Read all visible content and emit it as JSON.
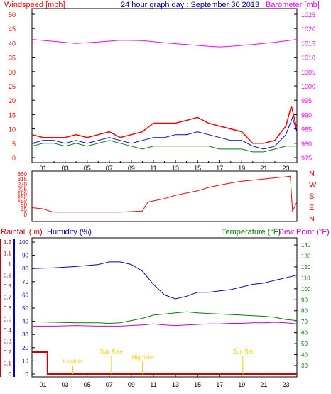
{
  "title": "24 hour graph day : September 30 2013",
  "colors": {
    "wind": "#ff0000",
    "gust": "#008000",
    "avg": "#0000ff",
    "baro": "#ff00ff",
    "rain": "#cc0000",
    "humidity": "#0000cc",
    "temp": "#008000",
    "dew": "#cc00cc",
    "sun": "#ffcc00",
    "axis": "#000000"
  },
  "panel1": {
    "left_label": "Windspeed [mph]",
    "right_label": "Barometer [mb]",
    "left_ticks": [
      "0",
      "5",
      "10",
      "15",
      "20",
      "25",
      "30",
      "35",
      "40",
      "45",
      "50"
    ],
    "right_ticks": [
      "975",
      "980",
      "985",
      "990",
      "995",
      "1000",
      "1005",
      "1010",
      "1015",
      "1020",
      "1025"
    ],
    "x_ticks": [
      "01",
      "03",
      "05",
      "07",
      "09",
      "11",
      "13",
      "15",
      "17",
      "19",
      "21",
      "23"
    ]
  },
  "panel2": {
    "left_ticks": [
      "0",
      "45",
      "90",
      "135",
      "180",
      "225",
      "270",
      "315",
      "360"
    ],
    "right_labels": [
      "N",
      "W",
      "S",
      "E",
      "N"
    ]
  },
  "panel3": {
    "rain_label": "Rainfall (.in)",
    "humidity_label": "Humidity (%)",
    "temp_label": "Temperature (°F)",
    "dew_label": "Dew Point (°F)",
    "rain_ticks": [
      "0",
      "0.1",
      "0.2",
      "0.3",
      "0.4",
      "0.5",
      "0.6",
      "0.7",
      "0.8",
      "0.9",
      "1",
      "1.1",
      "1.2"
    ],
    "humidity_ticks": [
      "0",
      "10",
      "20",
      "30",
      "40",
      "50",
      "60",
      "70",
      "80",
      "90",
      "100"
    ],
    "temp_ticks": [
      "30",
      "40",
      "50",
      "60",
      "70",
      "80",
      "90",
      "100",
      "110",
      "120",
      "130",
      "140"
    ],
    "x_ticks": [
      "01",
      "03",
      "05",
      "07",
      "09",
      "11",
      "13",
      "15",
      "17",
      "19",
      "21",
      "23"
    ],
    "events": [
      {
        "label": "Lowtide",
        "hour": 3.7
      },
      {
        "label": "Sun Rise",
        "hour": 7.2
      },
      {
        "label": "Hightide",
        "hour": 10.0
      },
      {
        "label": "Sun Set",
        "hour": 19.1
      }
    ]
  },
  "chart_data": [
    {
      "type": "line",
      "panel": "wind-barometer",
      "x_unit": "hour",
      "xlim": [
        0,
        24
      ],
      "ylim_left": [
        0,
        50
      ],
      "ylim_right": [
        975,
        1025
      ],
      "series": [
        {
          "axis": "left",
          "points": [
            [
              0,
              8
            ],
            [
              1,
              7
            ],
            [
              2,
              7
            ],
            [
              3,
              7
            ],
            [
              4,
              8
            ],
            [
              5,
              7
            ],
            [
              6,
              8
            ],
            [
              7,
              9
            ],
            [
              8,
              7
            ],
            [
              9,
              8
            ],
            [
              10,
              9
            ],
            [
              11,
              12
            ],
            [
              12,
              12
            ],
            [
              13,
              12
            ],
            [
              14,
              13
            ],
            [
              15,
              14
            ],
            [
              16,
              12
            ],
            [
              17,
              11
            ],
            [
              18,
              10
            ],
            [
              19,
              9
            ],
            [
              20,
              5
            ],
            [
              21,
              5
            ],
            [
              22,
              6
            ],
            [
              23,
              11
            ],
            [
              23.5,
              18
            ],
            [
              24,
              10
            ]
          ]
        },
        {
          "axis": "left",
          "points": [
            [
              0,
              4
            ],
            [
              1,
              5
            ],
            [
              2,
              5
            ],
            [
              3,
              4
            ],
            [
              4,
              5
            ],
            [
              5,
              4
            ],
            [
              6,
              5
            ],
            [
              7,
              6
            ],
            [
              8,
              5
            ],
            [
              9,
              4
            ],
            [
              10,
              3
            ],
            [
              11,
              4
            ],
            [
              12,
              4
            ],
            [
              13,
              4
            ],
            [
              14,
              4
            ],
            [
              15,
              4
            ],
            [
              16,
              4
            ],
            [
              17,
              3
            ],
            [
              18,
              3
            ],
            [
              19,
              3
            ],
            [
              20,
              2
            ],
            [
              21,
              2
            ],
            [
              22,
              3
            ],
            [
              23,
              4
            ],
            [
              24,
              4
            ]
          ]
        },
        {
          "axis": "left",
          "points": [
            [
              0,
              5
            ],
            [
              1,
              6
            ],
            [
              2,
              6
            ],
            [
              3,
              5
            ],
            [
              4,
              6
            ],
            [
              5,
              5
            ],
            [
              6,
              6
            ],
            [
              7,
              7
            ],
            [
              8,
              6
            ],
            [
              9,
              5
            ],
            [
              10,
              6
            ],
            [
              11,
              7
            ],
            [
              12,
              7
            ],
            [
              13,
              8
            ],
            [
              14,
              8
            ],
            [
              15,
              9
            ],
            [
              16,
              8
            ],
            [
              17,
              7
            ],
            [
              18,
              6
            ],
            [
              19,
              6
            ],
            [
              20,
              4
            ],
            [
              21,
              3
            ],
            [
              22,
              4
            ],
            [
              23,
              8
            ],
            [
              23.6,
              14
            ],
            [
              24,
              9
            ]
          ]
        },
        {
          "axis": "right",
          "points": [
            [
              0,
              1016.2
            ],
            [
              2,
              1015.5
            ],
            [
              4,
              1014.8
            ],
            [
              6,
              1015.3
            ],
            [
              8,
              1015.9
            ],
            [
              10,
              1015.8
            ],
            [
              12,
              1015.0
            ],
            [
              14,
              1014.4
            ],
            [
              16,
              1013.8
            ],
            [
              17,
              1013.6
            ],
            [
              18,
              1013.8
            ],
            [
              20,
              1014.4
            ],
            [
              22,
              1015.2
            ],
            [
              24,
              1016.2
            ]
          ]
        }
      ]
    },
    {
      "type": "line",
      "panel": "wind-direction",
      "x_unit": "hour",
      "xlim": [
        0,
        24
      ],
      "ylim": [
        0,
        360
      ],
      "points": [
        [
          0,
          60
        ],
        [
          1,
          50
        ],
        [
          1.6,
          30
        ],
        [
          2,
          20
        ],
        [
          4,
          20
        ],
        [
          6,
          20
        ],
        [
          8,
          20
        ],
        [
          10,
          30
        ],
        [
          10.5,
          110
        ],
        [
          11,
          120
        ],
        [
          12,
          140
        ],
        [
          13,
          170
        ],
        [
          14,
          190
        ],
        [
          15,
          210
        ],
        [
          16,
          240
        ],
        [
          17,
          260
        ],
        [
          18,
          280
        ],
        [
          19,
          295
        ],
        [
          20,
          305
        ],
        [
          21,
          315
        ],
        [
          22,
          325
        ],
        [
          23,
          335
        ],
        [
          23.4,
          340
        ],
        [
          23.6,
          30
        ],
        [
          24,
          110
        ]
      ]
    },
    {
      "type": "line",
      "panel": "rain-humidity-temperature",
      "x_unit": "hour",
      "xlim": [
        0,
        24
      ],
      "ylim_rain": [
        0,
        1.2
      ],
      "ylim_humidity": [
        0,
        100
      ],
      "ylim_temp": [
        30,
        140
      ],
      "series": [
        {
          "axis": "humidity",
          "points": [
            [
              0,
              80
            ],
            [
              2,
              80.5
            ],
            [
              4,
              81.5
            ],
            [
              6,
              83
            ],
            [
              7,
              85
            ],
            [
              8,
              85
            ],
            [
              9,
              83
            ],
            [
              10,
              78
            ],
            [
              11,
              68
            ],
            [
              12,
              60
            ],
            [
              13,
              57
            ],
            [
              14,
              59
            ],
            [
              15,
              62
            ],
            [
              16,
              62
            ],
            [
              17,
              63
            ],
            [
              18,
              64
            ],
            [
              19,
              66
            ],
            [
              20,
              68
            ],
            [
              21,
              69
            ],
            [
              22,
              71
            ],
            [
              23,
              73
            ],
            [
              24,
              75
            ]
          ]
        },
        {
          "axis": "temp",
          "points": [
            [
              0,
              70
            ],
            [
              2,
              69.5
            ],
            [
              4,
              69
            ],
            [
              6,
              69
            ],
            [
              7,
              68.5
            ],
            [
              8,
              69
            ],
            [
              9,
              71
            ],
            [
              10,
              73
            ],
            [
              11,
              76
            ],
            [
              12,
              77
            ],
            [
              13,
              78
            ],
            [
              14,
              79
            ],
            [
              15,
              78
            ],
            [
              16,
              77.5
            ],
            [
              17,
              77
            ],
            [
              18,
              76.5
            ],
            [
              19,
              76
            ],
            [
              20,
              75.5
            ],
            [
              21,
              75
            ],
            [
              22,
              74
            ],
            [
              23,
              72
            ],
            [
              24,
              71
            ]
          ]
        },
        {
          "axis": "temp",
          "points": [
            [
              0,
              66
            ],
            [
              2,
              66
            ],
            [
              4,
              66.5
            ],
            [
              6,
              66
            ],
            [
              8,
              66
            ],
            [
              10,
              67
            ],
            [
              11,
              68
            ],
            [
              12,
              67
            ],
            [
              13,
              66.5
            ],
            [
              14,
              67
            ],
            [
              15,
              67.5
            ],
            [
              16,
              68
            ],
            [
              17,
              68
            ],
            [
              18,
              68.5
            ],
            [
              19,
              68.5
            ],
            [
              20,
              69
            ],
            [
              21,
              69
            ],
            [
              22,
              69.5
            ],
            [
              23,
              69
            ],
            [
              24,
              68
            ]
          ]
        },
        {
          "axis": "rain",
          "points": [
            [
              0,
              0.2
            ],
            [
              1.4,
              0.2
            ],
            [
              1.4,
              0
            ],
            [
              24,
              0
            ]
          ]
        }
      ]
    }
  ]
}
